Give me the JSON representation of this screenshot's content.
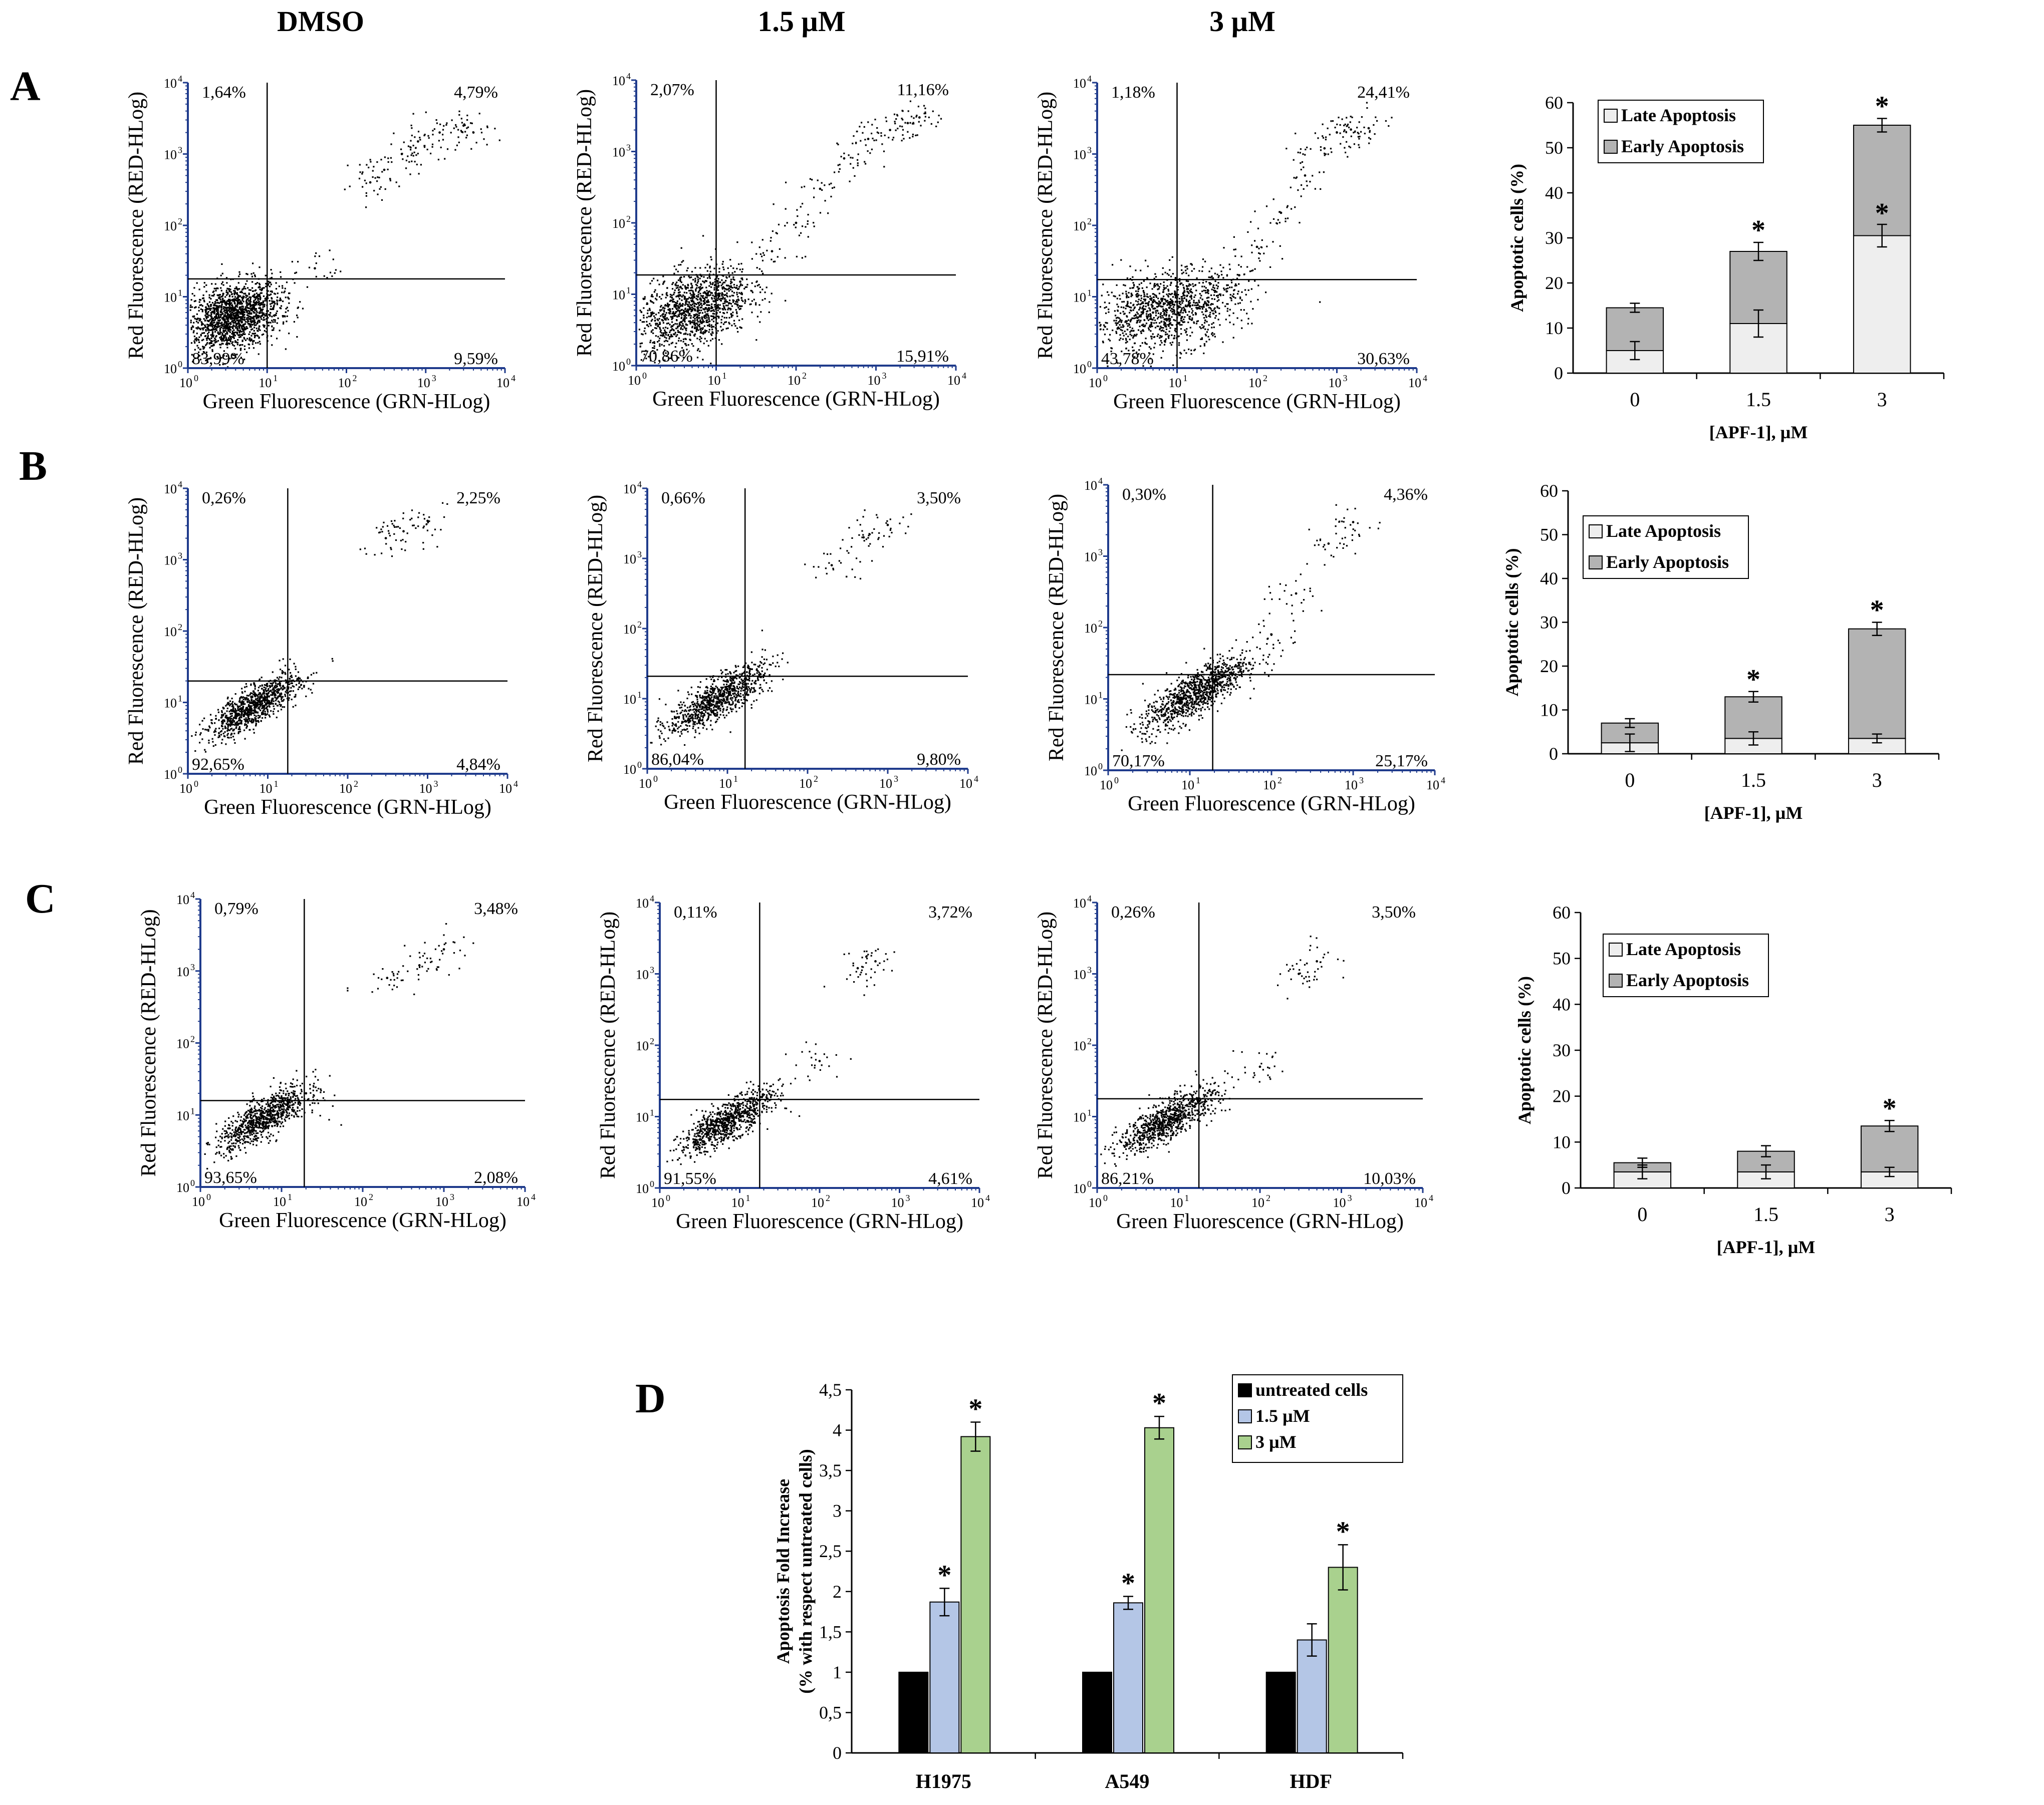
{
  "column_titles": [
    "DMSO",
    "1.5 µM",
    "3 µM"
  ],
  "panel_letters": [
    "A",
    "B",
    "C",
    "D"
  ],
  "flow_axes": {
    "xlabel": "Green Fluorescence (GRN-HLog)",
    "ylabel": "Red Fluorescence (RED-HLog)",
    "tick_base": "10",
    "tick_exponents": [
      "0",
      "1",
      "2",
      "3",
      "4"
    ]
  },
  "chart_data": [
    {
      "type": "scatter",
      "row": "A",
      "condition": "DMSO",
      "title": "",
      "xlabel": "Green Fluorescence (GRN-HLog)",
      "ylabel": "Red Fluorescence (RED-HLog)",
      "xlim": [
        1,
        10000
      ],
      "ylim": [
        1,
        10000
      ],
      "scale": "log",
      "quadrants": {
        "ul": "1,64%",
        "ur": "4,79%",
        "ll": "83,99%",
        "lr": "9,59%"
      },
      "points": [
        [
          5,
          6
        ],
        [
          4,
          5
        ],
        [
          3,
          7
        ],
        [
          5,
          4
        ],
        [
          8,
          6
        ],
        [
          2,
          5
        ],
        [
          6,
          8
        ],
        [
          10,
          10
        ],
        [
          40,
          25
        ],
        [
          200,
          400
        ],
        [
          300,
          600
        ],
        [
          500,
          1000
        ],
        [
          800,
          1500
        ],
        [
          1500,
          2000
        ],
        [
          3000,
          2500
        ],
        [
          4000,
          2000
        ]
      ]
    },
    {
      "type": "scatter",
      "row": "A",
      "condition": "1.5 µM",
      "title": "",
      "xlabel": "Green Fluorescence (GRN-HLog)",
      "ylabel": "Red Fluorescence (RED-HLog)",
      "xlim": [
        1,
        10000
      ],
      "ylim": [
        1,
        10000
      ],
      "scale": "log",
      "quadrants": {
        "ul": "2,07%",
        "ur": "11,16%",
        "ll": "70,86%",
        "lr": "15,91%"
      },
      "points": [
        [
          5,
          6
        ],
        [
          3,
          5
        ],
        [
          7,
          8
        ],
        [
          12,
          10
        ],
        [
          20,
          15
        ],
        [
          50,
          40
        ],
        [
          100,
          100
        ],
        [
          200,
          300
        ],
        [
          400,
          800
        ],
        [
          800,
          1500
        ],
        [
          1500,
          2000
        ],
        [
          2500,
          2500
        ],
        [
          3500,
          3000
        ]
      ]
    },
    {
      "type": "scatter",
      "row": "A",
      "condition": "3 µM",
      "title": "",
      "xlabel": "Green Fluorescence (GRN-HLog)",
      "ylabel": "Red Fluorescence (RED-HLog)",
      "xlim": [
        1,
        10000
      ],
      "ylim": [
        1,
        10000
      ],
      "scale": "log",
      "quadrants": {
        "ul": "1,18%",
        "ur": "24,41%",
        "ll": "43,78%",
        "lr": "30,63%"
      },
      "points": [
        [
          5,
          6
        ],
        [
          8,
          7
        ],
        [
          15,
          10
        ],
        [
          30,
          12
        ],
        [
          60,
          20
        ],
        [
          100,
          50
        ],
        [
          200,
          150
        ],
        [
          400,
          500
        ],
        [
          700,
          1200
        ],
        [
          1000,
          2000
        ],
        [
          1500,
          2200
        ],
        [
          2500,
          2300
        ]
      ]
    },
    {
      "type": "scatter",
      "row": "B",
      "condition": "DMSO",
      "title": "",
      "xlabel": "Green Fluorescence (GRN-HLog)",
      "ylabel": "Red Fluorescence (RED-HLog)",
      "xlim": [
        1,
        10000
      ],
      "ylim": [
        1,
        10000
      ],
      "scale": "log",
      "quadrants": {
        "ul": "0,26%",
        "ur": "2,25%",
        "ll": "92,65%",
        "lr": "4,84%"
      },
      "points": [
        [
          4,
          6
        ],
        [
          6,
          8
        ],
        [
          8,
          10
        ],
        [
          12,
          14
        ],
        [
          20,
          20
        ],
        [
          300,
          2000
        ],
        [
          500,
          2500
        ],
        [
          1000,
          3500
        ]
      ]
    },
    {
      "type": "scatter",
      "row": "B",
      "condition": "1.5 µM",
      "title": "",
      "xlabel": "Green Fluorescence (GRN-HLog)",
      "ylabel": "Red Fluorescence (RED-HLog)",
      "xlim": [
        1,
        10000
      ],
      "ylim": [
        1,
        10000
      ],
      "scale": "log",
      "quadrants": {
        "ul": "0,66%",
        "ur": "3,50%",
        "ll": "86,04%",
        "lr": "9,80%"
      },
      "points": [
        [
          4,
          6
        ],
        [
          6,
          8
        ],
        [
          10,
          10
        ],
        [
          15,
          14
        ],
        [
          25,
          22
        ],
        [
          200,
          800
        ],
        [
          500,
          2000
        ],
        [
          1000,
          3000
        ]
      ]
    },
    {
      "type": "scatter",
      "row": "B",
      "condition": "3 µM",
      "title": "",
      "xlabel": "Green Fluorescence (GRN-HLog)",
      "ylabel": "Red Fluorescence (RED-HLog)",
      "xlim": [
        1,
        10000
      ],
      "ylim": [
        1,
        10000
      ],
      "scale": "log",
      "quadrants": {
        "ul": "0,30%",
        "ur": "4,36%",
        "ll": "70,17%",
        "lr": "25,17%"
      },
      "points": [
        [
          5,
          6
        ],
        [
          8,
          9
        ],
        [
          12,
          12
        ],
        [
          20,
          18
        ],
        [
          40,
          30
        ],
        [
          100,
          80
        ],
        [
          200,
          300
        ],
        [
          500,
          1500
        ],
        [
          1000,
          3000
        ]
      ]
    },
    {
      "type": "scatter",
      "row": "C",
      "condition": "DMSO",
      "title": "",
      "xlabel": "Green Fluorescence (GRN-HLog)",
      "ylabel": "Red Fluorescence (RED-HLog)",
      "xlim": [
        1,
        10000
      ],
      "ylim": [
        1,
        10000
      ],
      "scale": "log",
      "quadrants": {
        "ul": "0,79%",
        "ur": "3,48%",
        "ll": "93,65%",
        "lr": "2,08%"
      },
      "points": [
        [
          4,
          6
        ],
        [
          6,
          8
        ],
        [
          9,
          10
        ],
        [
          14,
          14
        ],
        [
          20,
          20
        ],
        [
          200,
          800
        ],
        [
          500,
          1200
        ],
        [
          1000,
          2000
        ]
      ]
    },
    {
      "type": "scatter",
      "row": "C",
      "condition": "1.5 µM",
      "title": "",
      "xlabel": "Green Fluorescence (GRN-HLog)",
      "ylabel": "Red Fluorescence (RED-HLog)",
      "xlim": [
        1,
        10000
      ],
      "ylim": [
        1,
        10000
      ],
      "scale": "log",
      "quadrants": {
        "ul": "0,11%",
        "ur": "3,72%",
        "ll": "91,55%",
        "lr": "4,61%"
      },
      "points": [
        [
          4,
          6
        ],
        [
          6,
          8
        ],
        [
          10,
          10
        ],
        [
          15,
          14
        ],
        [
          25,
          20
        ],
        [
          100,
          60
        ],
        [
          300,
          1200
        ],
        [
          500,
          1500
        ]
      ]
    },
    {
      "type": "scatter",
      "row": "C",
      "condition": "3 µM",
      "title": "",
      "xlabel": "Green Fluorescence (GRN-HLog)",
      "ylabel": "Red Fluorescence (RED-HLog)",
      "xlim": [
        1,
        10000
      ],
      "ylim": [
        1,
        10000
      ],
      "scale": "log",
      "quadrants": {
        "ul": "0,26%",
        "ur": "3,50%",
        "ll": "86,21%",
        "lr": "10,03%"
      },
      "points": [
        [
          4,
          6
        ],
        [
          6,
          8
        ],
        [
          10,
          10
        ],
        [
          15,
          14
        ],
        [
          25,
          20
        ],
        [
          100,
          50
        ],
        [
          300,
          1000
        ],
        [
          500,
          1500
        ]
      ]
    },
    {
      "type": "bar",
      "row": "A",
      "stacked": true,
      "title": "",
      "xlabel": "[APF-1], µM",
      "ylabel": "Apoptotic cells (%)",
      "ylim": [
        0,
        60
      ],
      "yticks": [
        "0",
        "10",
        "20",
        "30",
        "40",
        "50",
        "60"
      ],
      "categories": [
        "0",
        "1.5",
        "3"
      ],
      "legend": [
        "Late Apoptosis",
        "Early Apoptosis"
      ],
      "series": [
        {
          "name": "Late Apoptosis",
          "values": [
            5,
            11,
            30.5
          ],
          "errors": [
            2,
            3,
            2.5
          ]
        },
        {
          "name": "Early Apoptosis",
          "values": [
            9.5,
            16,
            24.5
          ],
          "errors": [
            1,
            2,
            1.5
          ]
        }
      ],
      "significance": [
        "",
        "*",
        "*"
      ],
      "late_significance": [
        "",
        "",
        "*"
      ]
    },
    {
      "type": "bar",
      "row": "B",
      "stacked": true,
      "title": "",
      "xlabel": "[APF-1], µM",
      "ylabel": "Apoptotic cells (%)",
      "ylim": [
        0,
        60
      ],
      "yticks": [
        "0",
        "10",
        "20",
        "30",
        "40",
        "50",
        "60"
      ],
      "categories": [
        "0",
        "1.5",
        "3"
      ],
      "legend": [
        "Late Apoptosis",
        "Early Apoptosis"
      ],
      "series": [
        {
          "name": "Late Apoptosis",
          "values": [
            2.5,
            3.5,
            3.5
          ],
          "errors": [
            2,
            1.5,
            1
          ]
        },
        {
          "name": "Early Apoptosis",
          "values": [
            4.5,
            9.5,
            25
          ],
          "errors": [
            1,
            1.2,
            1.5
          ]
        }
      ],
      "significance": [
        "",
        "*",
        "*"
      ],
      "late_significance": [
        "",
        "",
        ""
      ]
    },
    {
      "type": "bar",
      "row": "C",
      "stacked": true,
      "title": "",
      "xlabel": "[APF-1], µM",
      "ylabel": "Apoptotic cells (%)",
      "ylim": [
        0,
        60
      ],
      "yticks": [
        "0",
        "10",
        "20",
        "30",
        "40",
        "50",
        "60"
      ],
      "categories": [
        "0",
        "1.5",
        "3"
      ],
      "legend": [
        "Late Apoptosis",
        "Early Apoptosis"
      ],
      "series": [
        {
          "name": "Late Apoptosis",
          "values": [
            3.5,
            3.5,
            3.5
          ],
          "errors": [
            1.5,
            1.5,
            1
          ]
        },
        {
          "name": "Early Apoptosis",
          "values": [
            2,
            4.5,
            10
          ],
          "errors": [
            1,
            1.2,
            1.2
          ]
        }
      ],
      "significance": [
        "",
        "",
        "*"
      ],
      "late_significance": [
        "",
        "",
        ""
      ]
    },
    {
      "type": "bar",
      "row": "D",
      "stacked": false,
      "title": "",
      "xlabel": "",
      "ylabel": "Apoptosis Fold Increase",
      "ylabel2": "(% with respect untreated cells)",
      "ylim": [
        0,
        4.5
      ],
      "yticks": [
        "0",
        "0,5",
        "1",
        "1,5",
        "2",
        "2,5",
        "3",
        "3,5",
        "4",
        "4,5"
      ],
      "categories": [
        "H1975",
        "A549",
        "HDF"
      ],
      "legend": [
        "untreated cells",
        "1.5 µM",
        "3 µM"
      ],
      "series": [
        {
          "name": "untreated cells",
          "values": [
            1,
            1,
            1
          ],
          "errors": [
            0,
            0,
            0
          ]
        },
        {
          "name": "1.5 µM",
          "values": [
            1.87,
            1.86,
            1.4
          ],
          "errors": [
            0.17,
            0.08,
            0.2
          ]
        },
        {
          "name": "3 µM",
          "values": [
            3.92,
            4.03,
            2.3
          ],
          "errors": [
            0.18,
            0.14,
            0.28
          ]
        }
      ],
      "significance": [
        [
          "",
          "*",
          "*"
        ],
        [
          "",
          "*",
          "*"
        ],
        [
          "",
          "",
          "*"
        ]
      ]
    }
  ],
  "colors": {
    "ink": "#000000",
    "flow_axis": "#1f3b8c",
    "late": "#eeeeee",
    "early": "#b3b3b3",
    "untreated": "#000000",
    "low": "#b4c6e6",
    "high": "#a9d18e"
  }
}
